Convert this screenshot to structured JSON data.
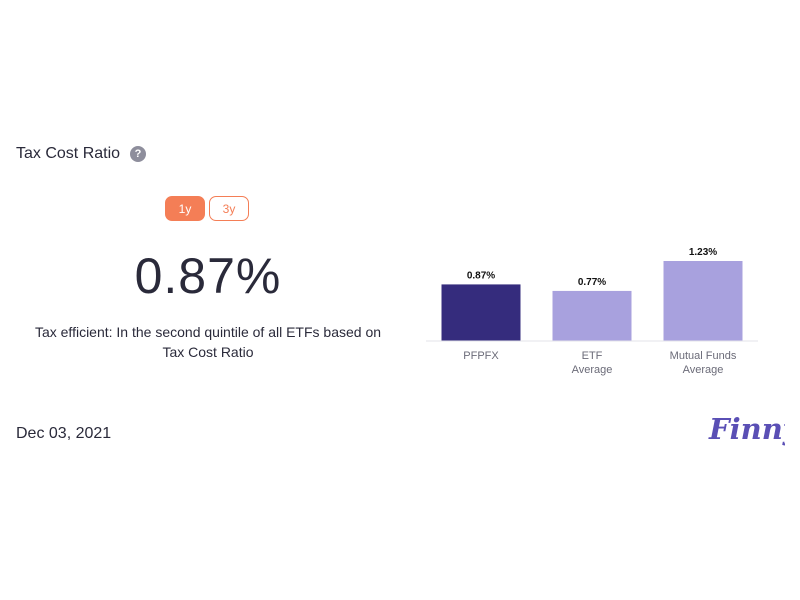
{
  "header": {
    "title": "Tax Cost Ratio",
    "help_icon": "question-mark-icon"
  },
  "tabs": [
    {
      "label": "1y",
      "active": true
    },
    {
      "label": "3y",
      "active": false
    }
  ],
  "metric": {
    "value": "0.87%",
    "description": "Tax efficient: In the second quintile of all ETFs based on Tax Cost Ratio"
  },
  "chart_data": {
    "type": "bar",
    "categories": [
      [
        "PFPFX"
      ],
      [
        "ETF",
        "Average"
      ],
      [
        "Mutual Funds",
        "Average"
      ]
    ],
    "values": [
      0.87,
      0.77,
      1.23
    ],
    "data_labels": [
      "0.87%",
      "0.77%",
      "1.23%"
    ],
    "colors": [
      "#352c7d",
      "#a8a1de",
      "#a8a1de"
    ],
    "ylim": [
      0,
      1.23
    ],
    "grid": false,
    "legend": "none"
  },
  "footer": {
    "date": "Dec 03, 2021",
    "logo_text": "Finny",
    "logo_color": "#5a4fb5"
  }
}
